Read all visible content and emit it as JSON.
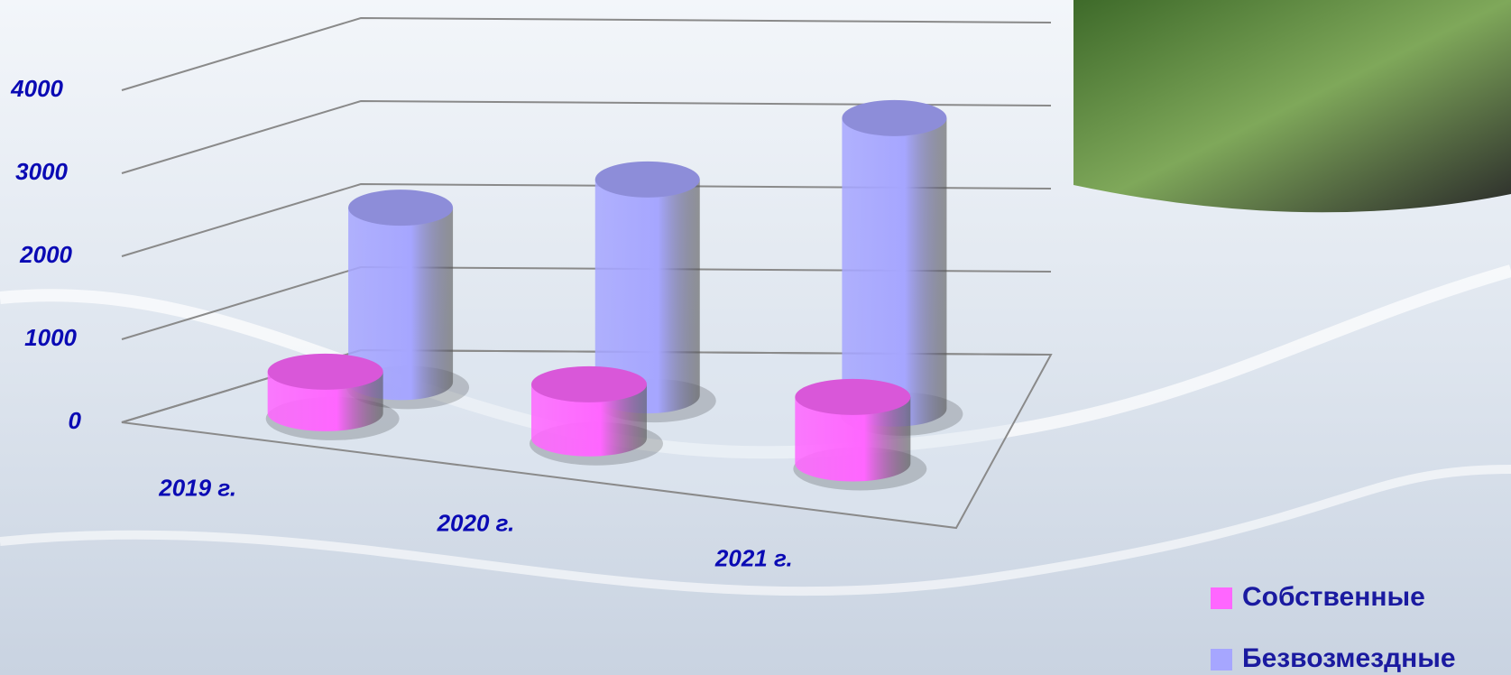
{
  "chart_data": {
    "type": "cylinder3d",
    "categories": [
      "2019 г.",
      "2020 г.",
      "2021 г."
    ],
    "series": [
      {
        "name": "Собственные",
        "color": "#ff66ff",
        "values": [
          500,
          650,
          800
        ]
      },
      {
        "name": "Безвозмездные",
        "color": "#a6a6ff",
        "values": [
          2100,
          2600,
          3500
        ]
      }
    ],
    "ylim": [
      0,
      4000
    ],
    "yticks": [
      0,
      1000,
      2000,
      3000,
      4000
    ],
    "grid": true,
    "legend": "bottom-right"
  }
}
